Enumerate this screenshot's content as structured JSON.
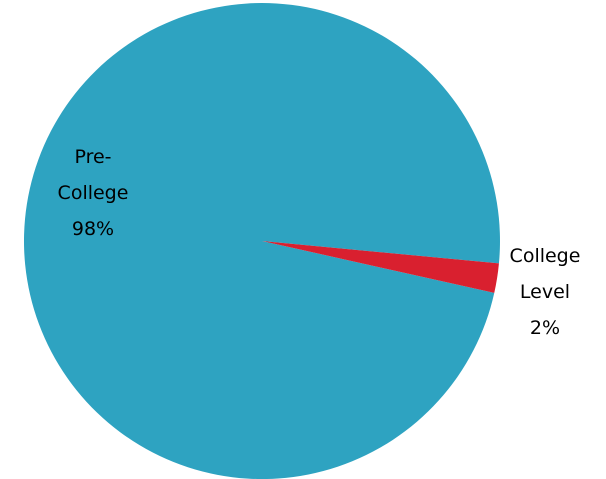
{
  "chart_data": {
    "type": "pie",
    "title": "",
    "slices": [
      {
        "name": "Pre-College",
        "value": 98,
        "label_lines": [
          "Pre-",
          "College",
          "98%"
        ],
        "color": "#2ea3c1"
      },
      {
        "name": "College Level",
        "value": 2,
        "label_lines": [
          "College",
          "Level",
          "2%"
        ],
        "color": "#d9202f"
      }
    ],
    "legend": "none"
  }
}
